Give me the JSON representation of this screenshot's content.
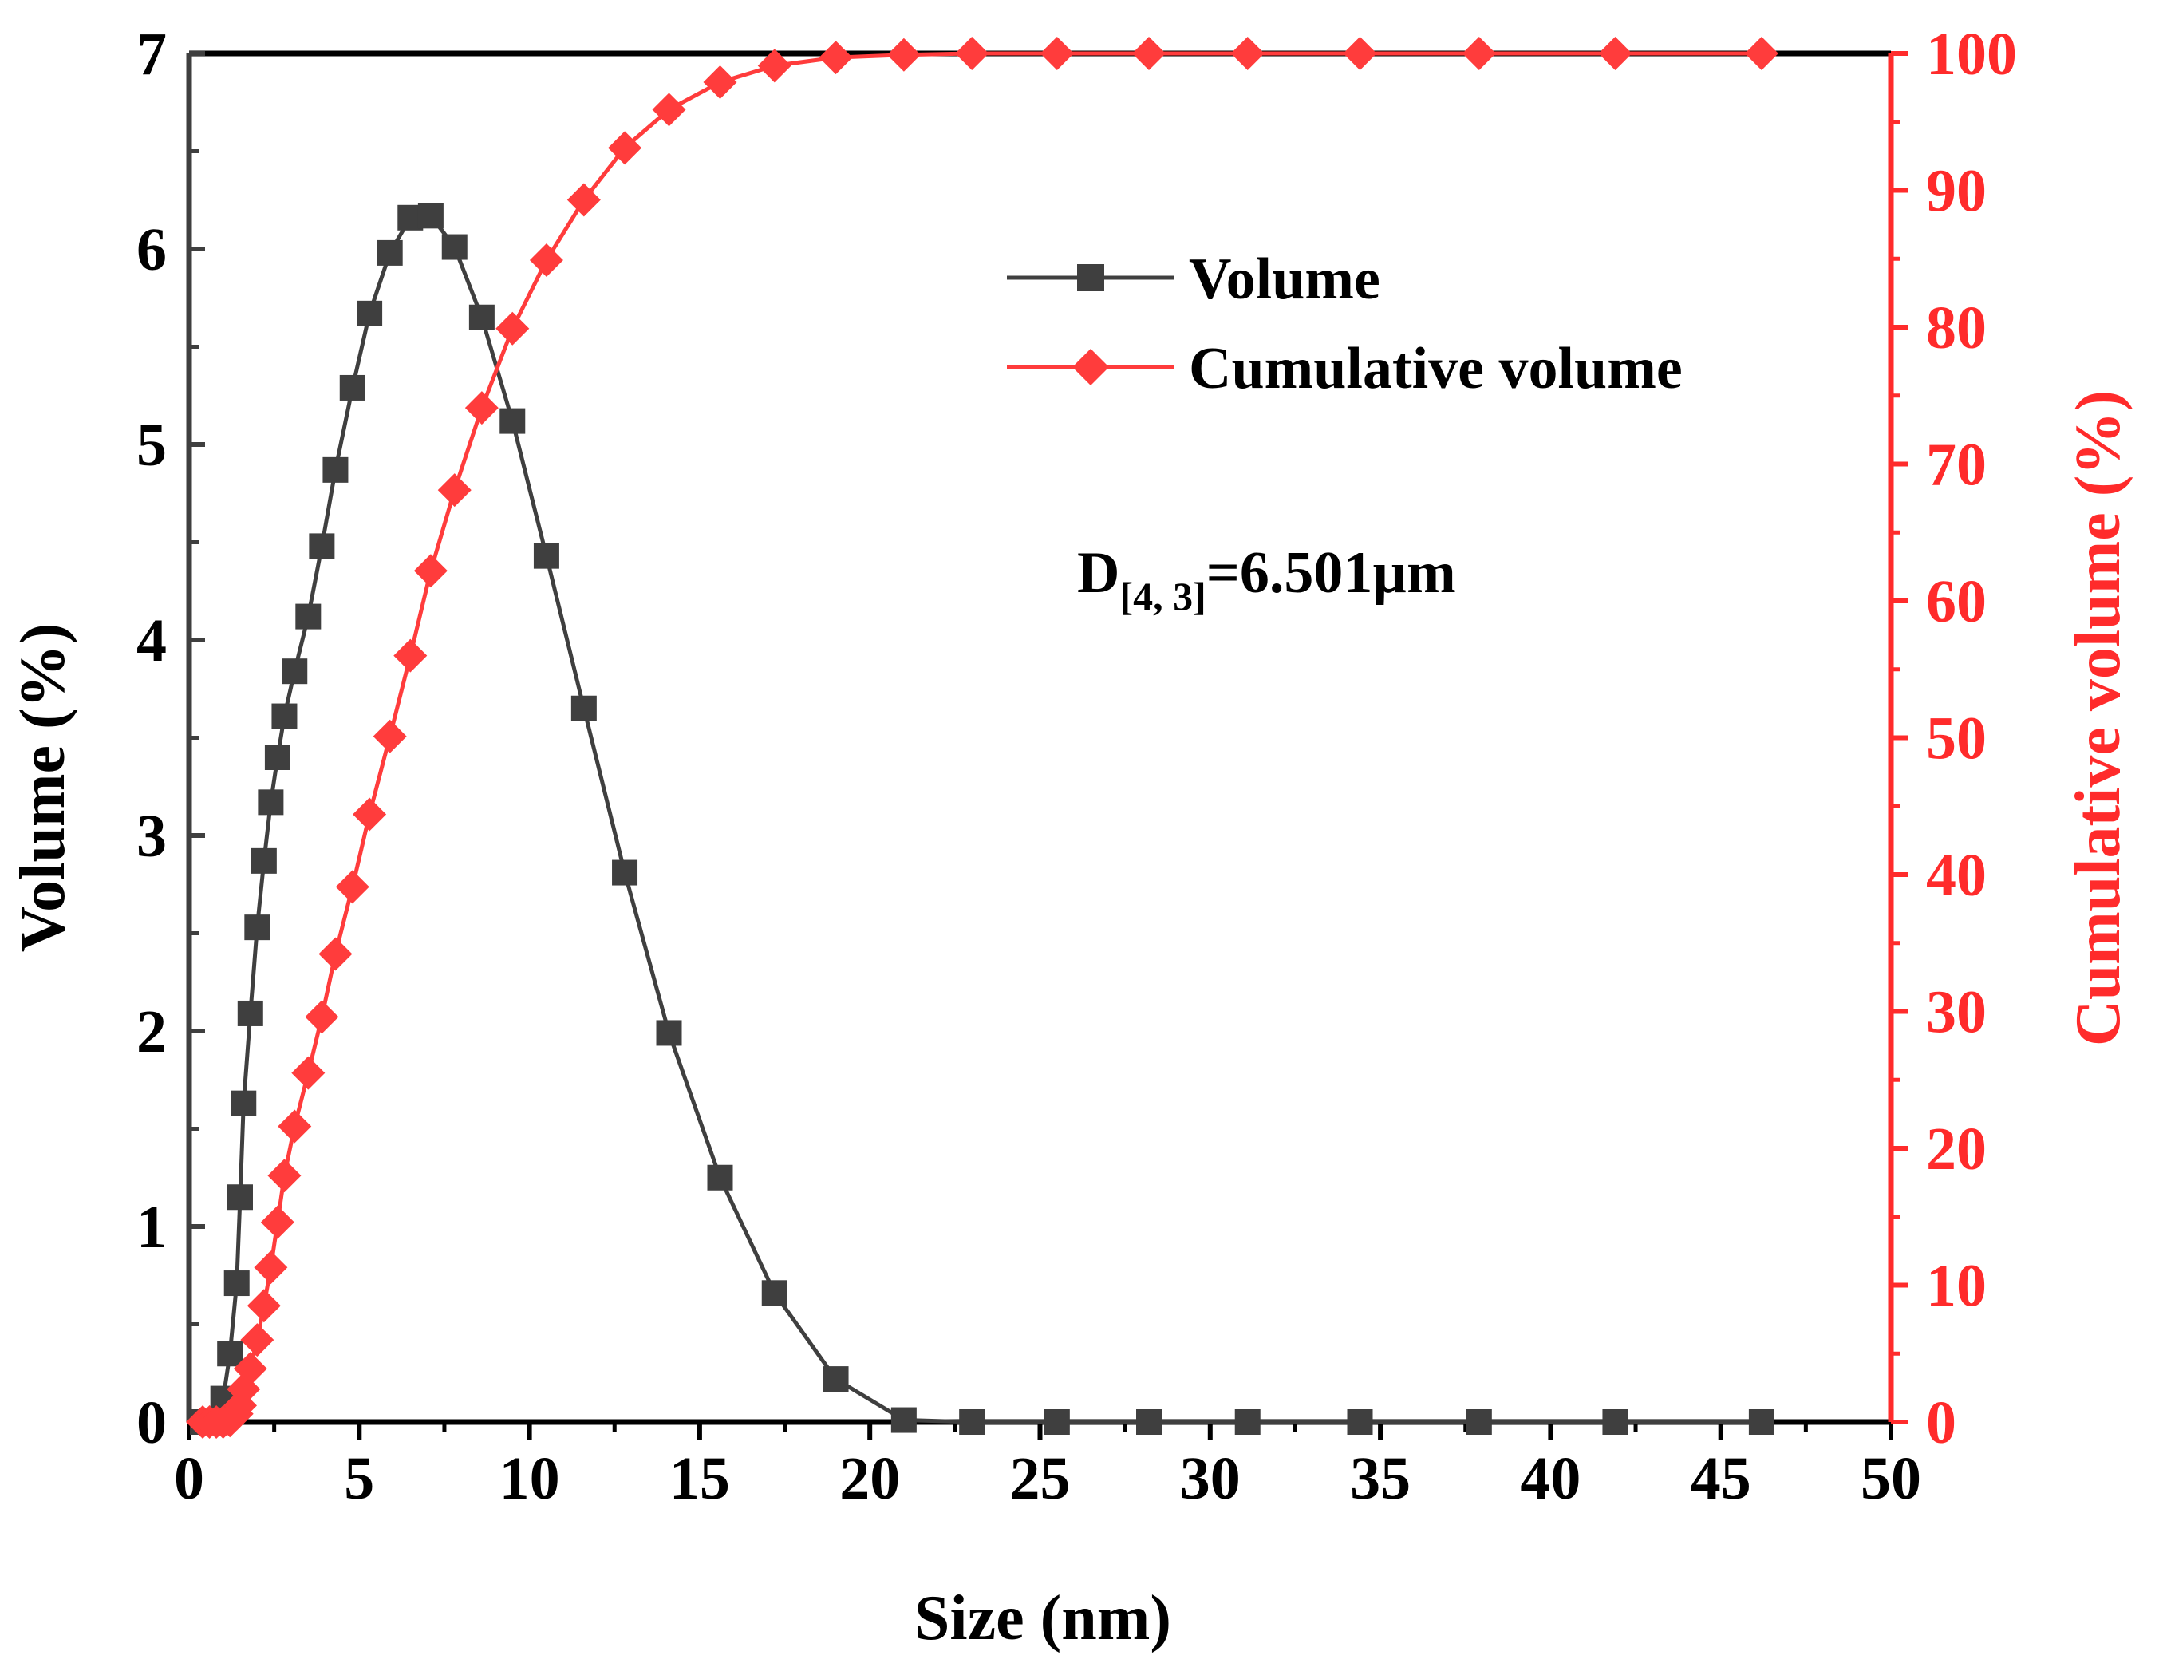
{
  "chart_data": {
    "type": "line",
    "title": "",
    "annotation": {
      "prefix": "D",
      "subscript": "[4, 3]",
      "suffix": "=6.501µm"
    },
    "xlabel": "Size (nm)",
    "ylabel": "Volume (%)",
    "y2label": "Cumulative volume (%)",
    "xlim": [
      0,
      50
    ],
    "ylim": [
      0,
      7
    ],
    "y2lim": [
      0,
      100
    ],
    "x_ticks": [
      "0",
      "5",
      "10",
      "15",
      "20",
      "25",
      "30",
      "35",
      "40",
      "45",
      "50"
    ],
    "y_ticks": [
      "0",
      "1",
      "2",
      "3",
      "4",
      "5",
      "6",
      "7"
    ],
    "y2_ticks": [
      "0",
      "10",
      "20",
      "30",
      "40",
      "50",
      "60",
      "70",
      "80",
      "90",
      "100"
    ],
    "legend": {
      "position": "top-right"
    },
    "series": [
      {
        "name": "Volume",
        "axis": "left",
        "marker": "square",
        "color": "#3f3f3f",
        "x": [
          0.4,
          0.6,
          0.8,
          1.0,
          1.2,
          1.4,
          1.5,
          1.6,
          1.8,
          2.0,
          2.2,
          2.4,
          2.6,
          2.8,
          3.1,
          3.5,
          3.9,
          4.3,
          4.8,
          5.3,
          5.9,
          6.5,
          7.1,
          7.8,
          8.6,
          9.5,
          10.5,
          11.6,
          12.8,
          14.1,
          15.6,
          17.2,
          19.0,
          21.0,
          23.0,
          25.5,
          28.2,
          31.1,
          34.4,
          37.9,
          41.9,
          46.2
        ],
        "values": [
          0.0,
          0.0,
          0.0,
          0.12,
          0.35,
          0.71,
          1.15,
          1.63,
          2.09,
          2.53,
          2.87,
          3.17,
          3.4,
          3.61,
          3.84,
          4.12,
          4.48,
          4.87,
          5.29,
          5.67,
          5.98,
          6.16,
          6.17,
          6.01,
          5.65,
          5.12,
          4.43,
          3.65,
          2.81,
          1.99,
          1.25,
          0.66,
          0.22,
          0.01,
          0.0,
          0.0,
          0.0,
          0.0,
          0.0,
          0.0,
          0.0,
          0.0
        ]
      },
      {
        "name": "Cumulative volume",
        "axis": "right",
        "marker": "diamond",
        "color": "#ff3c3c",
        "x": [
          0.4,
          0.6,
          0.8,
          1.0,
          1.2,
          1.4,
          1.5,
          1.6,
          1.8,
          2.0,
          2.2,
          2.4,
          2.6,
          2.8,
          3.1,
          3.5,
          3.9,
          4.3,
          4.8,
          5.3,
          5.9,
          6.5,
          7.1,
          7.8,
          8.6,
          9.5,
          10.5,
          11.6,
          12.8,
          14.1,
          15.6,
          17.2,
          19.0,
          21.0,
          23.0,
          25.5,
          28.2,
          31.1,
          34.4,
          37.9,
          41.9,
          46.2
        ],
        "values": [
          0.0,
          0.0,
          0.0,
          0.0,
          0.1,
          0.6,
          1.2,
          2.4,
          3.9,
          6.0,
          8.5,
          11.3,
          14.6,
          18.0,
          21.6,
          25.5,
          29.6,
          34.2,
          39.1,
          44.4,
          50.1,
          56.0,
          62.2,
          68.1,
          74.1,
          79.9,
          84.9,
          89.3,
          93.1,
          95.9,
          97.9,
          99.1,
          99.7,
          99.9,
          100.0,
          100.0,
          100.0,
          100.0,
          100.0,
          100.0,
          100.0,
          100.0
        ]
      }
    ]
  }
}
